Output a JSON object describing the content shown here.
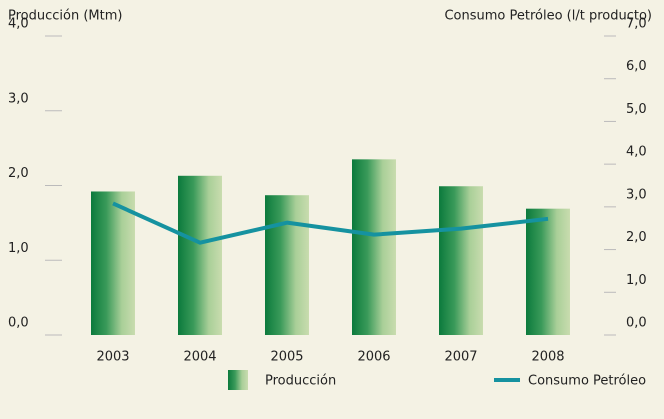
{
  "chart_data": {
    "type": "bar",
    "y_label": "Producción (Mtm)",
    "y2_label": "Consumo Petróleo (l/t producto)",
    "categories": [
      "2003",
      "2004",
      "2005",
      "2006",
      "2007",
      "2008"
    ],
    "series": [
      {
        "name": "Producción",
        "type": "bar",
        "color": "#0f7b40",
        "values": [
          1.92,
          2.13,
          1.87,
          2.35,
          1.99,
          1.69
        ]
      },
      {
        "name": "Consumo Petróleo",
        "type": "line",
        "axis": "y2",
        "color": "#1592a0",
        "values": [
          3.08,
          2.16,
          2.63,
          2.35,
          2.49,
          2.72
        ]
      }
    ],
    "ylim": [
      0,
      4
    ],
    "yticks": [
      {
        "value": 0,
        "label": "0,0"
      },
      {
        "value": 1,
        "label": "1,0"
      },
      {
        "value": 2,
        "label": "2,0"
      },
      {
        "value": 3,
        "label": "3,0"
      },
      {
        "value": 4,
        "label": "4,0"
      }
    ],
    "y2lim": [
      0,
      7
    ],
    "y2ticks": [
      {
        "value": 0,
        "label": "0,0"
      },
      {
        "value": 1,
        "label": "1,0"
      },
      {
        "value": 2,
        "label": "2,0"
      },
      {
        "value": 3,
        "label": "3,0"
      },
      {
        "value": 4,
        "label": "4,0"
      },
      {
        "value": 5,
        "label": "5,0"
      },
      {
        "value": 6,
        "label": "6,0"
      },
      {
        "value": 7,
        "label": "7,0"
      }
    ]
  }
}
